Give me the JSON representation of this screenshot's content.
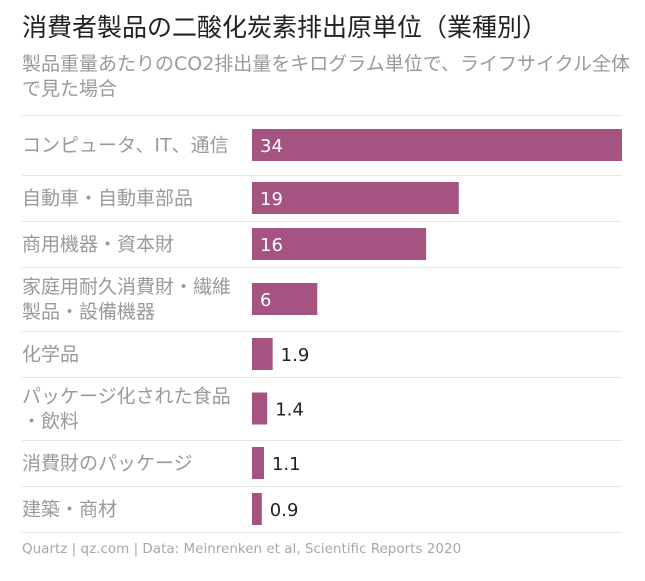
{
  "title": "消費者製品の二酸化炭素排出原単位（業種別）",
  "subtitle": "製品重量あたりのCO2排出量をキログラム単位で、ライフサイクル全体で見た場合",
  "footer": "Quartz | qz.com | Data: Meinrenken et al, Scientific Reports 2020",
  "colors": {
    "bar": "#a55482",
    "label": "#9a9a9a",
    "value_inside": "#ffffff",
    "value_outside": "#222222",
    "divider": "#e6e6e6"
  },
  "chart_data": {
    "type": "bar",
    "orientation": "horizontal",
    "categories": [
      "コンピュータ、IT、通信",
      "自動車・自動車部品",
      "商用機器・資本財",
      "家庭用耐久消費財・繊維製品・設備機器",
      "化学品",
      "パッケージ化された食品・飲料",
      "消費財のパッケージ",
      "建築・商材"
    ],
    "values": [
      34,
      19,
      16,
      6,
      1.9,
      1.4,
      1.1,
      0.9
    ],
    "value_labels": [
      "34",
      "19",
      "16",
      "6",
      "1.9",
      "1.4",
      "1.1",
      "0.9"
    ],
    "xlim": [
      0,
      34
    ],
    "grid": false,
    "legend": "none"
  }
}
